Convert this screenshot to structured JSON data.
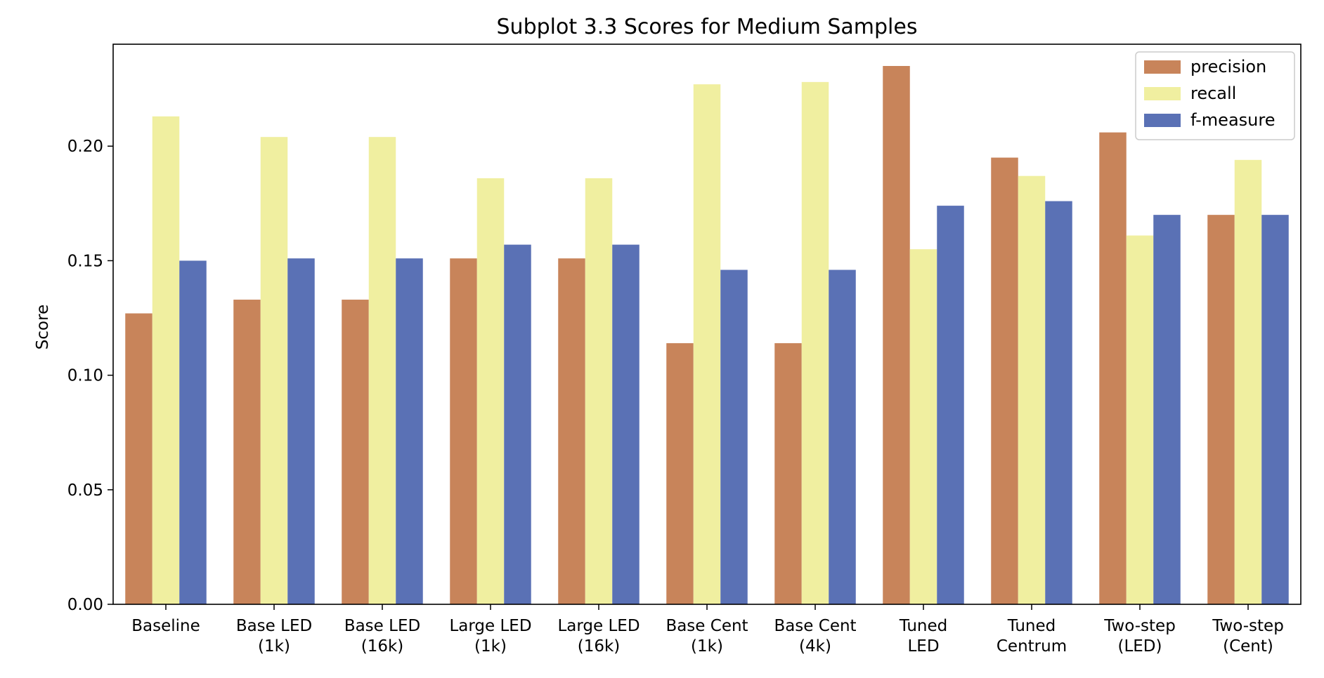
{
  "chart_data": {
    "type": "bar",
    "title": "Subplot 3.3 Scores for Medium Samples",
    "xlabel": "",
    "ylabel": "Score",
    "ylim": [
      0,
      0.2445
    ],
    "yticks": [
      "0.00",
      "0.05",
      "0.10",
      "0.15",
      "0.20"
    ],
    "categories": [
      [
        "Baseline"
      ],
      [
        "Base LED",
        "(1k)"
      ],
      [
        "Base LED",
        "(16k)"
      ],
      [
        "Large LED",
        "(1k)"
      ],
      [
        "Large LED",
        "(16k)"
      ],
      [
        "Base Cent",
        "(1k)"
      ],
      [
        "Base Cent",
        "(4k)"
      ],
      [
        "Tuned",
        "LED"
      ],
      [
        "Tuned",
        "Centrum"
      ],
      [
        "Two-step",
        "(LED)"
      ],
      [
        "Two-step",
        "(Cent)"
      ]
    ],
    "series": [
      {
        "name": "precision",
        "color": "#c8845a",
        "values": [
          0.127,
          0.133,
          0.133,
          0.151,
          0.151,
          0.114,
          0.114,
          0.235,
          0.195,
          0.206,
          0.17
        ]
      },
      {
        "name": "recall",
        "color": "#f0efa0",
        "values": [
          0.213,
          0.204,
          0.204,
          0.186,
          0.186,
          0.227,
          0.228,
          0.155,
          0.187,
          0.161,
          0.194
        ]
      },
      {
        "name": "f-measure",
        "color": "#5a71b5",
        "values": [
          0.15,
          0.151,
          0.151,
          0.157,
          0.157,
          0.146,
          0.146,
          0.174,
          0.176,
          0.17,
          0.17
        ]
      }
    ],
    "legend_position": "top-right",
    "grid": false
  }
}
